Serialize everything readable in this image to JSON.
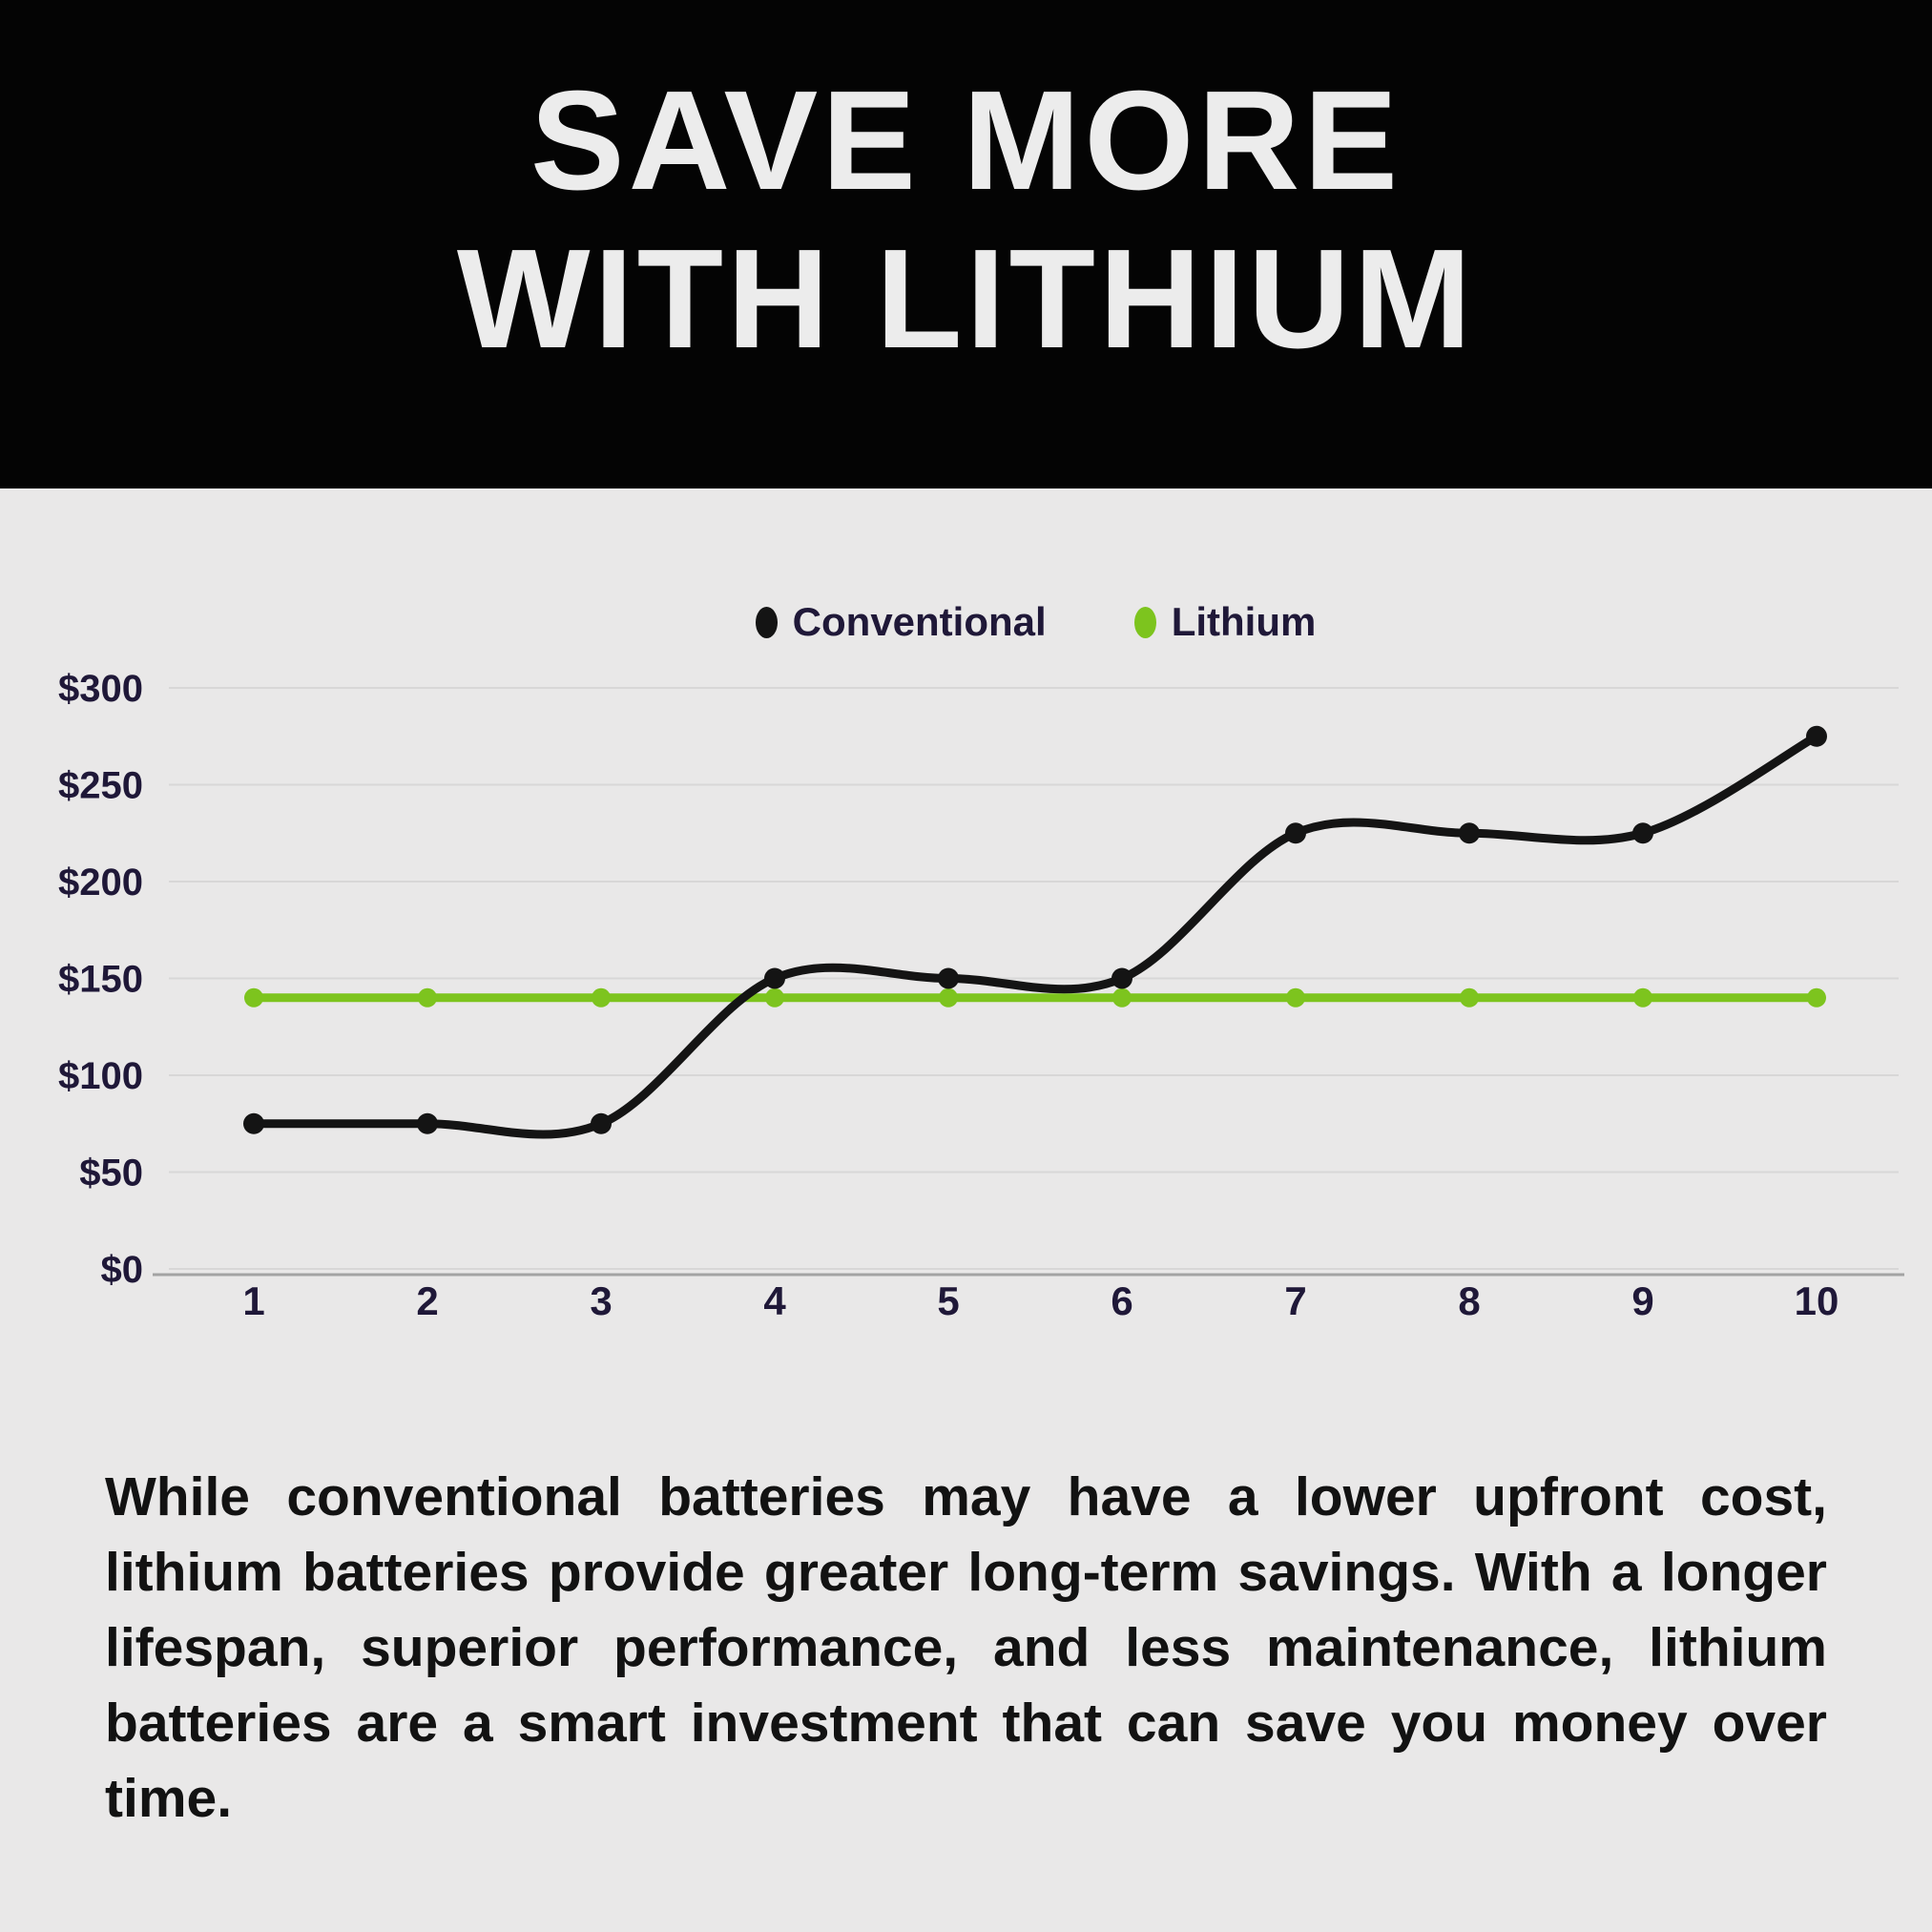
{
  "header": {
    "title_line1": "SAVE MORE",
    "title_line2": "WITH LITHIUM"
  },
  "legend": [
    {
      "label": "Conventional",
      "color": "#141414"
    },
    {
      "label": "Lithium",
      "color": "#7dc41e"
    }
  ],
  "chart_data": {
    "type": "line",
    "x": [
      1,
      2,
      3,
      4,
      5,
      6,
      7,
      8,
      9,
      10
    ],
    "series": [
      {
        "name": "Conventional",
        "color": "#141414",
        "values": [
          75,
          75,
          75,
          150,
          150,
          150,
          225,
          225,
          225,
          275
        ],
        "smooth": true
      },
      {
        "name": "Lithium",
        "color": "#7dc41e",
        "values": [
          140,
          140,
          140,
          140,
          140,
          140,
          140,
          140,
          140,
          140
        ],
        "smooth": false
      }
    ],
    "ylim": [
      0,
      300
    ],
    "ytick_step": 50,
    "ytick_prefix": "$",
    "ytick_labels": [
      "$0",
      "$50",
      "$100",
      "$150",
      "$200",
      "$250",
      "$300"
    ],
    "grid": true,
    "legend_position": "top-center",
    "xlabel": "",
    "ylabel": ""
  },
  "body_text": "While conventional batteries may have a lower upfront cost, lithium batteries provide greater long-term savings. With a longer lifespan, superior performance, and less maintenance, lithium batteries are a smart investment that can save you money over time.",
  "colors": {
    "page_background": "#e9e8e8",
    "header_background": "#040404",
    "title_text": "#ececec",
    "gridline": "#d8d7d7",
    "axis_line": "#a3a3a3",
    "tick_text": "#1f1838",
    "body_text": "#121212"
  }
}
